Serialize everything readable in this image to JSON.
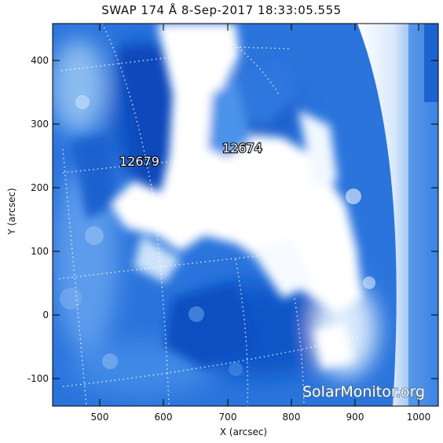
{
  "title": "SWAP 174 Å  8-Sep-2017 18:33:05.555",
  "axes": {
    "x_label": "X (arcsec)",
    "y_label": "Y (arcsec)",
    "x_ticks": [
      "500",
      "600",
      "700",
      "800",
      "900",
      "1000"
    ],
    "y_ticks": [
      "400",
      "300",
      "200",
      "100",
      "0",
      "-100"
    ],
    "x_range": [
      428,
      1032
    ],
    "y_range": [
      -145,
      455
    ]
  },
  "regions": [
    {
      "number": "12679"
    },
    {
      "number": "12674"
    }
  ],
  "watermark": "SolarMonitor.org",
  "colors": {
    "deep_blue": "#0e55cc",
    "mid_blue": "#3f88e6",
    "light_blue": "#a8cdf5",
    "white_hot": "#ffffff"
  }
}
